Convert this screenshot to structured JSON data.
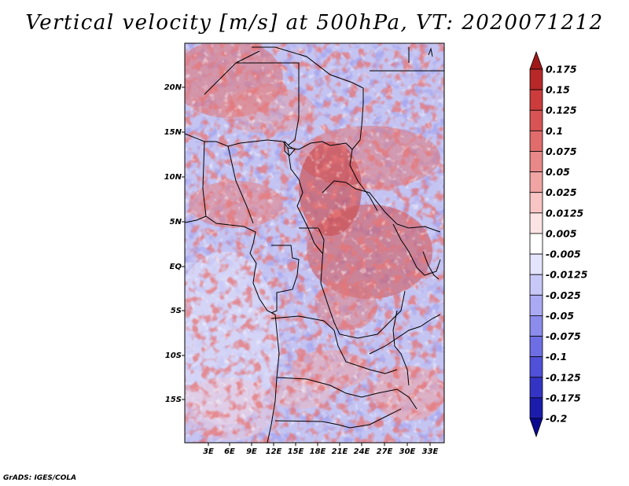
{
  "title": "Vertical velocity [m/s] at 500hPa, VT: 2020071212",
  "credit": "GrADS: IGES/COLA",
  "map": {
    "lon_range": [
      -1,
      34.5
    ],
    "lat_range": [
      -20,
      24.5
    ],
    "lon_labels": [
      "3E",
      "6E",
      "9E",
      "12E",
      "15E",
      "18E",
      "21E",
      "24E",
      "27E",
      "30E",
      "33E"
    ],
    "lat_labels": [
      "20N",
      "15N",
      "10N",
      "5N",
      "EQ",
      "5S",
      "10S",
      "15S"
    ]
  },
  "colorbar": {
    "levels": [
      "0.175",
      "0.15",
      "0.125",
      "0.1",
      "0.075",
      "0.05",
      "0.025",
      "0.0125",
      "0.005",
      "-0.005",
      "-0.0125",
      "-0.025",
      "-0.05",
      "-0.075",
      "-0.1",
      "-0.125",
      "-0.175",
      "-0.2"
    ],
    "colors": [
      "#a01818",
      "#b82828",
      "#cc3c3c",
      "#d85454",
      "#e06c6c",
      "#e88888",
      "#f0a4a4",
      "#f8c4c4",
      "#fce4e4",
      "#ffffff",
      "#e4e4fc",
      "#c8c8f8",
      "#aaaaf4",
      "#8c8cec",
      "#6e6ee4",
      "#5050d8",
      "#3434c4",
      "#1c1cac",
      "#0a0a90"
    ]
  }
}
